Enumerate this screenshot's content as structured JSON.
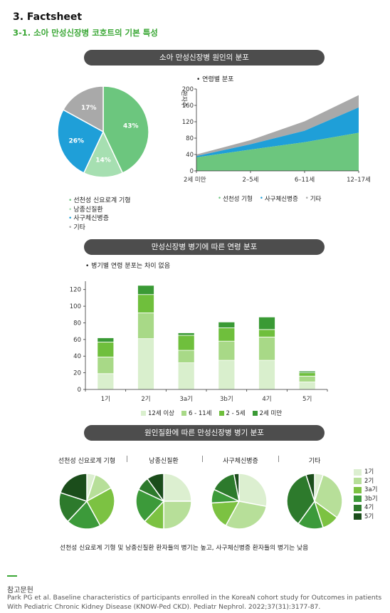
{
  "header": {
    "section": "3. Factsheet",
    "subsection": "3-1. 소아 만성신장병 코호트의 기본 특성"
  },
  "section1": {
    "title": "소아 만성신장병 원인의 분포",
    "legend": [
      "선천성 신요로계 기형",
      "낭종신질환",
      "사구체신병증",
      "기타"
    ]
  },
  "section2": {
    "title": "만성신장병 병기에 따른 연령 분포",
    "note": "• 병기별 연령 분포는 차이 없음"
  },
  "section3": {
    "title": "원인질환에 따른 만성신장병 병기 분포",
    "footnote": "선천성 신요로계 기형 및 낭종신질환 환자들의 병기는 높고, 사구체신병증 환자들의 병기는 낮음",
    "legend": [
      "1기",
      "2기",
      "3a기",
      "3b기",
      "4기",
      "5기"
    ]
  },
  "reference": {
    "title": "참고문헌",
    "text": "Park PG et al. Baseline characteristics of participants enrolled in the KoreaN cohort study for Outcomes in patients With Pediatric Chronic Kidney Disease (KNOW-Ped CKD). Pediatr Nephrol. 2022;37(31):3177-87."
  },
  "colors": {
    "cakut": "#6cc67e",
    "cystic": "#a6dfb1",
    "glomerular": "#1f9fd8",
    "other": "#a9a9a9",
    "age12p": "#d9efcd",
    "age6_11": "#a8d987",
    "age2_5": "#6fbf3c",
    "age_lt2": "#3a9a35",
    "stage": [
      "#dcefd0",
      "#b7df99",
      "#7cc242",
      "#3c9a3a",
      "#2d7a2c",
      "#1b4d1b"
    ]
  },
  "chart_data": [
    {
      "type": "pie",
      "title": "",
      "labels": [
        "선천성 신요로계 기형",
        "낭종신질환",
        "사구체신병증",
        "기타"
      ],
      "values": [
        43,
        14,
        26,
        17
      ],
      "value_labels": [
        "43%",
        "14%",
        "26%",
        "17%"
      ]
    },
    {
      "type": "area",
      "title": "• 연령별 분포",
      "xlabel": "",
      "ylabel": "환자수",
      "categories": [
        "2세 미만",
        "2–5세",
        "6–11세",
        "12–17세"
      ],
      "yticks": [
        "0",
        "40",
        "80",
        "120",
        "160",
        "200"
      ],
      "ylim": [
        0,
        200
      ],
      "stacked": true,
      "series": [
        {
          "name": "선천성 기형",
          "values": [
            33,
            52,
            70,
            93
          ]
        },
        {
          "name": "사구체신병증",
          "values": [
            3,
            13,
            28,
            62
          ]
        },
        {
          "name": "기타",
          "values": [
            4,
            10,
            23,
            30
          ]
        }
      ],
      "legend_position": "bottom"
    },
    {
      "type": "bar",
      "stacked": true,
      "title": "",
      "categories": [
        "1기",
        "2기",
        "3a기",
        "3b기",
        "4기",
        "5기"
      ],
      "yticks": [
        "0",
        "20",
        "40",
        "60",
        "80",
        "100",
        "120"
      ],
      "ylim": [
        0,
        130
      ],
      "series": [
        {
          "name": "12세 이상",
          "values": [
            19,
            61,
            32,
            35,
            35,
            9
          ]
        },
        {
          "name": "6 - 11세",
          "values": [
            20,
            31,
            15,
            23,
            28,
            7
          ]
        },
        {
          "name": "2 - 5세",
          "values": [
            18,
            22,
            18,
            16,
            9,
            4
          ]
        },
        {
          "name": "2세 미만",
          "values": [
            5,
            11,
            3,
            7,
            15,
            2
          ]
        }
      ],
      "legend_position": "bottom"
    },
    {
      "type": "pie",
      "title": "선천성 신요로계 기형",
      "labels": [
        "1기",
        "2기",
        "3a기",
        "3b기",
        "4기",
        "5기"
      ],
      "values": [
        5,
        12,
        25,
        20,
        18,
        20
      ]
    },
    {
      "type": "pie",
      "title": "낭종신질환",
      "labels": [
        "1기",
        "2기",
        "3a기",
        "3b기",
        "4기",
        "5기"
      ],
      "values": [
        25,
        25,
        12,
        20,
        8,
        10
      ]
    },
    {
      "type": "pie",
      "title": "사구체신병증",
      "labels": [
        "1기",
        "2기",
        "3a기",
        "3b기",
        "4기",
        "5기"
      ],
      "values": [
        28,
        30,
        16,
        8,
        15,
        3
      ]
    },
    {
      "type": "pie",
      "title": "기타",
      "labels": [
        "1기",
        "2기",
        "3a기",
        "3b기",
        "4기",
        "5기"
      ],
      "values": [
        5,
        30,
        10,
        15,
        35,
        5
      ]
    }
  ]
}
